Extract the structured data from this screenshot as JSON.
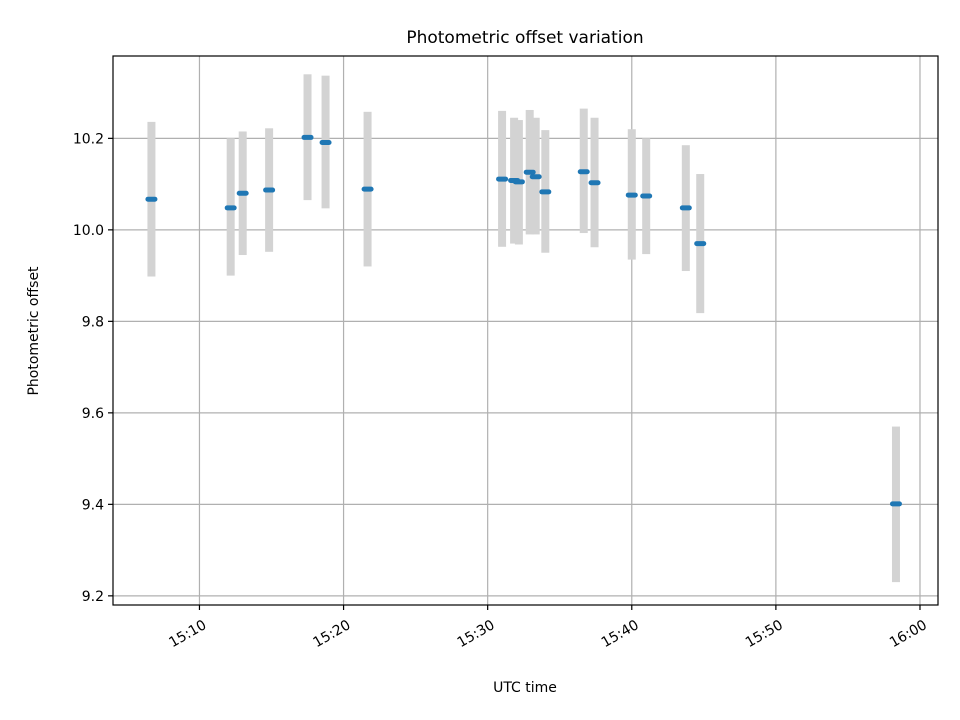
{
  "chart_data": {
    "type": "scatter",
    "title": "Photometric offset variation",
    "xlabel": "UTC time",
    "ylabel": "Photometric offset",
    "x_axis_type": "time",
    "xlim": [
      "15:04:00",
      "16:01:15"
    ],
    "ylim": [
      9.18,
      10.38
    ],
    "grid": true,
    "x_ticks": [
      "15:10",
      "15:20",
      "15:30",
      "15:40",
      "15:50",
      "16:00"
    ],
    "y_ticks": [
      9.2,
      9.4,
      9.6,
      9.8,
      10.0,
      10.2
    ],
    "colors": {
      "points": "#1f77b4",
      "error_bars": "#d3d3d3"
    },
    "series": [
      {
        "points": [
          {
            "x": "15:06:40",
            "y": 10.067,
            "yerr_low": 9.898,
            "yerr_high": 10.236
          },
          {
            "x": "15:12:10",
            "y": 10.048,
            "yerr_low": 9.9,
            "yerr_high": 10.2
          },
          {
            "x": "15:13:00",
            "y": 10.08,
            "yerr_low": 9.945,
            "yerr_high": 10.215
          },
          {
            "x": "15:14:50",
            "y": 10.087,
            "yerr_low": 9.952,
            "yerr_high": 10.222
          },
          {
            "x": "15:17:30",
            "y": 10.202,
            "yerr_low": 10.065,
            "yerr_high": 10.34
          },
          {
            "x": "15:18:45",
            "y": 10.191,
            "yerr_low": 10.047,
            "yerr_high": 10.337
          },
          {
            "x": "15:21:40",
            "y": 10.089,
            "yerr_low": 9.92,
            "yerr_high": 10.258
          },
          {
            "x": "15:31:00",
            "y": 10.111,
            "yerr_low": 9.963,
            "yerr_high": 10.26
          },
          {
            "x": "15:31:50",
            "y": 10.108,
            "yerr_low": 9.97,
            "yerr_high": 10.245
          },
          {
            "x": "15:32:10",
            "y": 10.105,
            "yerr_low": 9.968,
            "yerr_high": 10.24
          },
          {
            "x": "15:32:55",
            "y": 10.126,
            "yerr_low": 9.99,
            "yerr_high": 10.262
          },
          {
            "x": "15:33:20",
            "y": 10.116,
            "yerr_low": 9.99,
            "yerr_high": 10.245
          },
          {
            "x": "15:34:00",
            "y": 10.083,
            "yerr_low": 9.95,
            "yerr_high": 10.218
          },
          {
            "x": "15:36:40",
            "y": 10.127,
            "yerr_low": 9.993,
            "yerr_high": 10.265
          },
          {
            "x": "15:37:25",
            "y": 10.103,
            "yerr_low": 9.962,
            "yerr_high": 10.245
          },
          {
            "x": "15:40:00",
            "y": 10.076,
            "yerr_low": 9.935,
            "yerr_high": 10.22
          },
          {
            "x": "15:41:00",
            "y": 10.074,
            "yerr_low": 9.947,
            "yerr_high": 10.2
          },
          {
            "x": "15:43:45",
            "y": 10.048,
            "yerr_low": 9.91,
            "yerr_high": 10.185
          },
          {
            "x": "15:44:45",
            "y": 9.97,
            "yerr_low": 9.818,
            "yerr_high": 10.122
          },
          {
            "x": "15:58:20",
            "y": 9.401,
            "yerr_low": 9.23,
            "yerr_high": 9.57
          }
        ]
      }
    ]
  }
}
